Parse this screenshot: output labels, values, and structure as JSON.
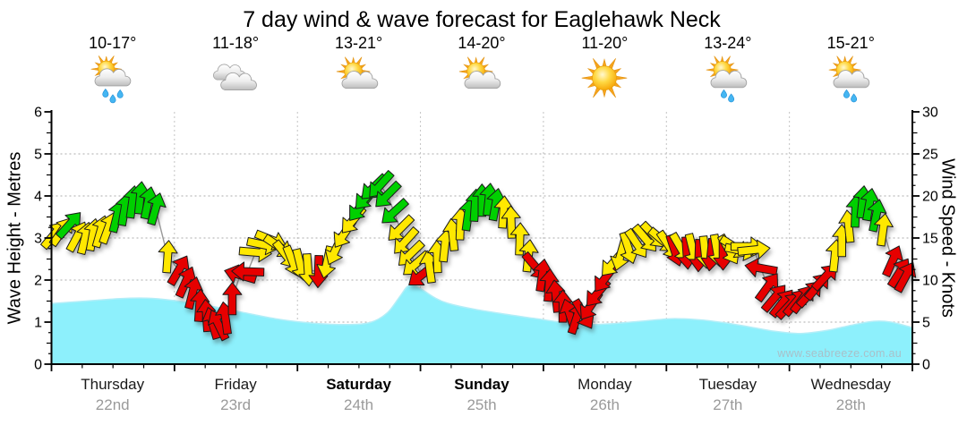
{
  "title": "7 day wind & wave forecast for Eaglehawk Neck",
  "watermark": "www.seabreeze.com.au",
  "axes": {
    "wave": {
      "label": "Wave Height - Metres",
      "min": 0,
      "max": 6,
      "major_ticks": [
        0,
        1,
        2,
        3,
        4,
        5,
        6
      ]
    },
    "wind": {
      "label": "Wind Speed - Knots",
      "min": 0,
      "max": 30,
      "major_ticks": [
        0,
        5,
        10,
        15,
        20,
        25,
        30
      ]
    }
  },
  "header": {
    "days": [
      {
        "name": "Thursday",
        "date": "22nd",
        "temps": "10-17°",
        "icon": "showers",
        "bold": false
      },
      {
        "name": "Friday",
        "date": "23rd",
        "temps": "11-18°",
        "icon": "cloudy",
        "bold": false
      },
      {
        "name": "Saturday",
        "date": "24th",
        "temps": "13-21°",
        "icon": "partly-cloudy",
        "bold": true
      },
      {
        "name": "Sunday",
        "date": "25th",
        "temps": "14-20°",
        "icon": "partly-cloudy",
        "bold": true
      },
      {
        "name": "Monday",
        "date": "26th",
        "temps": "11-20°",
        "icon": "sunny",
        "bold": false
      },
      {
        "name": "Tuesday",
        "date": "27th",
        "temps": "13-24°",
        "icon": "light-showers",
        "bold": false
      },
      {
        "name": "Wednesday",
        "date": "28th",
        "temps": "15-21°",
        "icon": "light-showers",
        "bold": false
      }
    ]
  },
  "chart_data": {
    "type": "area+wind-arrows",
    "x_range_days": 7,
    "grid": {
      "horizontal_at_metres": [
        1,
        2,
        3,
        4,
        5
      ],
      "vertical_at_day_boundaries": true
    },
    "wave_height_m": {
      "ylim": [
        0,
        6
      ],
      "points": [
        [
          0.0,
          1.44
        ],
        [
          0.04,
          1.5
        ],
        [
          0.08,
          1.56
        ],
        [
          0.11,
          1.57
        ],
        [
          0.14,
          1.52
        ],
        [
          0.18,
          1.4
        ],
        [
          0.22,
          1.24
        ],
        [
          0.26,
          1.08
        ],
        [
          0.3,
          0.98
        ],
        [
          0.34,
          0.94
        ],
        [
          0.37,
          0.99
        ],
        [
          0.39,
          1.22
        ],
        [
          0.405,
          1.62
        ],
        [
          0.413,
          1.84
        ],
        [
          0.42,
          1.88
        ],
        [
          0.43,
          1.78
        ],
        [
          0.445,
          1.58
        ],
        [
          0.46,
          1.45
        ],
        [
          0.49,
          1.31
        ],
        [
          0.52,
          1.21
        ],
        [
          0.56,
          1.09
        ],
        [
          0.59,
          1.0
        ],
        [
          0.62,
          0.94
        ],
        [
          0.65,
          0.96
        ],
        [
          0.69,
          1.03
        ],
        [
          0.72,
          1.08
        ],
        [
          0.75,
          1.06
        ],
        [
          0.78,
          0.99
        ],
        [
          0.81,
          0.89
        ],
        [
          0.84,
          0.78
        ],
        [
          0.87,
          0.73
        ],
        [
          0.9,
          0.8
        ],
        [
          0.93,
          0.93
        ],
        [
          0.955,
          1.02
        ],
        [
          0.975,
          1.0
        ],
        [
          1.0,
          0.87
        ]
      ]
    },
    "wind_knots": {
      "ylim": [
        0,
        30
      ],
      "color_key": {
        "g": "green",
        "y": "yellow",
        "r": "red"
      },
      "arrow_note": "each point = [time 0-1, knots, pointing-direction deg (0=up/N, 90=right/E), color]",
      "points": [
        [
          0.003,
          15.4,
          40,
          "y"
        ],
        [
          0.012,
          15.8,
          35,
          "y"
        ],
        [
          0.021,
          16.6,
          42,
          "g"
        ],
        [
          0.03,
          15.2,
          28,
          "y"
        ],
        [
          0.039,
          15.0,
          14,
          "y"
        ],
        [
          0.048,
          15.4,
          10,
          "y"
        ],
        [
          0.057,
          15.8,
          16,
          "y"
        ],
        [
          0.066,
          16.2,
          20,
          "y"
        ],
        [
          0.076,
          17.6,
          14,
          "g"
        ],
        [
          0.085,
          18.4,
          10,
          "g"
        ],
        [
          0.094,
          19.3,
          8,
          "g"
        ],
        [
          0.103,
          19.8,
          6,
          "g"
        ],
        [
          0.112,
          19.2,
          12,
          "g"
        ],
        [
          0.121,
          18.5,
          16,
          "g"
        ],
        [
          0.135,
          12.8,
          4,
          "y"
        ],
        [
          0.148,
          11.2,
          30,
          "r"
        ],
        [
          0.156,
          9.8,
          24,
          "r"
        ],
        [
          0.164,
          8.5,
          14,
          "r"
        ],
        [
          0.172,
          7.0,
          4,
          "r"
        ],
        [
          0.18,
          5.8,
          356,
          "r"
        ],
        [
          0.187,
          4.9,
          344,
          "r"
        ],
        [
          0.194,
          4.7,
          334,
          "r"
        ],
        [
          0.202,
          5.5,
          352,
          "r"
        ],
        [
          0.21,
          7.8,
          0,
          "r"
        ],
        [
          0.219,
          10.6,
          286,
          "r"
        ],
        [
          0.228,
          11.0,
          272,
          "r"
        ],
        [
          0.237,
          13.3,
          95,
          "y"
        ],
        [
          0.246,
          14.2,
          102,
          "y"
        ],
        [
          0.255,
          14.8,
          112,
          "y"
        ],
        [
          0.264,
          14.0,
          124,
          "y"
        ],
        [
          0.272,
          13.0,
          142,
          "y"
        ],
        [
          0.28,
          12.2,
          158,
          "y"
        ],
        [
          0.289,
          11.8,
          166,
          "y"
        ],
        [
          0.298,
          11.2,
          176,
          "y"
        ],
        [
          0.31,
          11.0,
          182,
          "r"
        ],
        [
          0.32,
          12.1,
          192,
          "y"
        ],
        [
          0.33,
          13.6,
          205,
          "y"
        ],
        [
          0.34,
          15.5,
          214,
          "y"
        ],
        [
          0.35,
          17.1,
          220,
          "y"
        ],
        [
          0.358,
          18.6,
          218,
          "g"
        ],
        [
          0.366,
          19.9,
          222,
          "g"
        ],
        [
          0.374,
          21.0,
          226,
          "g"
        ],
        [
          0.382,
          21.3,
          222,
          "g"
        ],
        [
          0.39,
          20.1,
          225,
          "g"
        ],
        [
          0.398,
          18.1,
          228,
          "g"
        ],
        [
          0.405,
          16.1,
          225,
          "y"
        ],
        [
          0.411,
          14.6,
          222,
          "y"
        ],
        [
          0.417,
          13.1,
          226,
          "y"
        ],
        [
          0.423,
          11.9,
          229,
          "y"
        ],
        [
          0.43,
          10.6,
          232,
          "r"
        ],
        [
          0.439,
          11.6,
          352,
          "y"
        ],
        [
          0.448,
          12.8,
          358,
          "y"
        ],
        [
          0.457,
          14.1,
          6,
          "y"
        ],
        [
          0.466,
          15.4,
          354,
          "y"
        ],
        [
          0.475,
          16.7,
          2,
          "y"
        ],
        [
          0.484,
          17.8,
          8,
          "g"
        ],
        [
          0.492,
          18.9,
          4,
          "g"
        ],
        [
          0.5,
          19.5,
          0,
          "g"
        ],
        [
          0.508,
          19.6,
          6,
          "g"
        ],
        [
          0.516,
          19.0,
          10,
          "g"
        ],
        [
          0.525,
          18.1,
          4,
          "y"
        ],
        [
          0.534,
          16.9,
          358,
          "y"
        ],
        [
          0.544,
          14.9,
          2,
          "y"
        ],
        [
          0.554,
          12.9,
          6,
          "y"
        ],
        [
          0.562,
          11.6,
          140,
          "r"
        ],
        [
          0.57,
          10.6,
          8,
          "r"
        ],
        [
          0.578,
          9.4,
          4,
          "r"
        ],
        [
          0.586,
          8.1,
          354,
          "r"
        ],
        [
          0.594,
          6.9,
          0,
          "r"
        ],
        [
          0.602,
          5.9,
          342,
          "r"
        ],
        [
          0.61,
          5.5,
          18,
          "r"
        ],
        [
          0.618,
          5.9,
          150,
          "r"
        ],
        [
          0.626,
          6.9,
          214,
          "r"
        ],
        [
          0.634,
          8.4,
          220,
          "r"
        ],
        [
          0.643,
          10.2,
          217,
          "r"
        ],
        [
          0.652,
          12.0,
          221,
          "y"
        ],
        [
          0.661,
          13.0,
          196,
          "y"
        ],
        [
          0.67,
          13.8,
          162,
          "y"
        ],
        [
          0.68,
          14.3,
          146,
          "y"
        ],
        [
          0.69,
          14.9,
          140,
          "y"
        ],
        [
          0.7,
          15.3,
          136,
          "y"
        ],
        [
          0.71,
          14.7,
          130,
          "y"
        ],
        [
          0.717,
          14.1,
          146,
          "y"
        ],
        [
          0.724,
          13.5,
          162,
          "r"
        ],
        [
          0.731,
          13.8,
          150,
          "y"
        ],
        [
          0.738,
          13.2,
          176,
          "r"
        ],
        [
          0.745,
          13.6,
          166,
          "y"
        ],
        [
          0.752,
          12.9,
          182,
          "r"
        ],
        [
          0.759,
          13.3,
          174,
          "y"
        ],
        [
          0.766,
          13.0,
          186,
          "r"
        ],
        [
          0.773,
          13.5,
          170,
          "y"
        ],
        [
          0.78,
          13.1,
          180,
          "r"
        ],
        [
          0.787,
          13.6,
          150,
          "y"
        ],
        [
          0.794,
          13.9,
          122,
          "y"
        ],
        [
          0.801,
          13.5,
          102,
          "y"
        ],
        [
          0.808,
          14.0,
          90,
          "y"
        ],
        [
          0.816,
          13.6,
          84,
          "y"
        ],
        [
          0.824,
          11.4,
          280,
          "r"
        ],
        [
          0.832,
          9.2,
          36,
          "r"
        ],
        [
          0.84,
          7.9,
          40,
          "r"
        ],
        [
          0.849,
          7.3,
          38,
          "r"
        ],
        [
          0.857,
          7.0,
          43,
          "r"
        ],
        [
          0.865,
          7.4,
          40,
          "r"
        ],
        [
          0.873,
          7.8,
          37,
          "r"
        ],
        [
          0.881,
          8.4,
          42,
          "r"
        ],
        [
          0.89,
          9.3,
          40,
          "r"
        ],
        [
          0.899,
          10.4,
          43,
          "r"
        ],
        [
          0.91,
          12.9,
          6,
          "y"
        ],
        [
          0.918,
          14.7,
          0,
          "y"
        ],
        [
          0.926,
          16.4,
          354,
          "y"
        ],
        [
          0.934,
          18.2,
          2,
          "g"
        ],
        [
          0.942,
          19.3,
          6,
          "g"
        ],
        [
          0.95,
          19.0,
          10,
          "g"
        ],
        [
          0.958,
          17.7,
          12,
          "g"
        ],
        [
          0.966,
          16.0,
          8,
          "y"
        ],
        [
          0.977,
          12.3,
          24,
          "r"
        ],
        [
          0.985,
          10.9,
          32,
          "r"
        ],
        [
          0.992,
          10.4,
          28,
          "r"
        ]
      ]
    }
  },
  "palette": {
    "green": "#00D000",
    "yellow": "#FFE800",
    "red": "#E60000",
    "arrow_outline": "#1b1b1b",
    "wave_fill": "#8DF0FC",
    "wave_edge": "#b2eef8",
    "grid": "#ababab",
    "grid_vertical": "#c3c3c3",
    "axis": "#000000",
    "wind_line": "#999999",
    "date_text": "#9a9a9a"
  }
}
